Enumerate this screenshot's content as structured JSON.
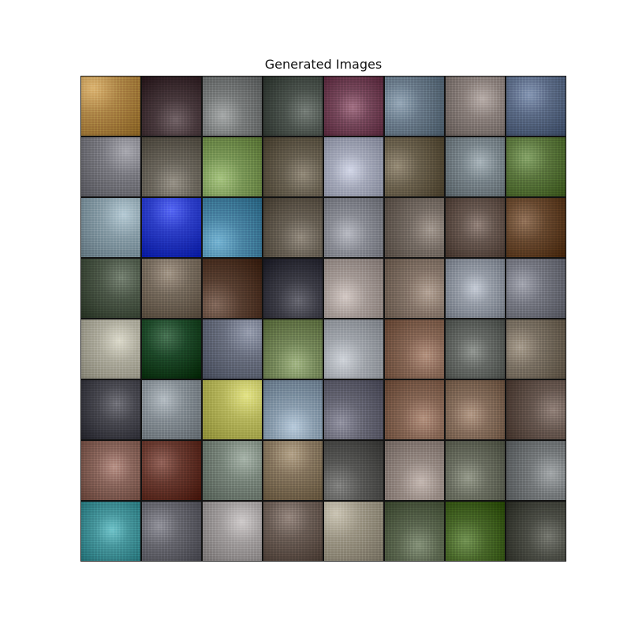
{
  "figure": {
    "title": "Generated Images"
  },
  "grid": {
    "rows": 8,
    "cols": 8,
    "tiles": [
      [
        "#b08a4a",
        "#4a3a3e",
        "#7d8080",
        "#4e5650",
        "#7a4a5e",
        "#6e7f8e",
        "#8e8480",
        "#5f6f8a"
      ],
      [
        "#7f7f86",
        "#6f6a60",
        "#7e9a5a",
        "#6a6252",
        "#a8acbc",
        "#6e6450",
        "#7f8a90",
        "#5e7a40"
      ],
      [
        "#8ca0aa",
        "#2e40c8",
        "#4e8aa8",
        "#6a6256",
        "#8e9098",
        "#7a7068",
        "#6a5a52",
        "#6a4a30"
      ],
      [
        "#4e5a4a",
        "#7a6e60",
        "#5a4032",
        "#3e3e48",
        "#a89e9a",
        "#8a7a6e",
        "#9aa0aa",
        "#7a7c86"
      ],
      [
        "#b0aea0",
        "#1e4a2a",
        "#6e7484",
        "#7a8c5e",
        "#a4a8ae",
        "#8a6a58",
        "#6a6e6a",
        "#7e7466"
      ],
      [
        "#4a4a52",
        "#8a9298",
        "#b8b860",
        "#8ea0b0",
        "#6a6a78",
        "#8a6a58",
        "#8a7260",
        "#6a5a52"
      ],
      [
        "#8e6a60",
        "#6a3a30",
        "#7e8a80",
        "#8a7a62",
        "#5a5a58",
        "#9a8e88",
        "#6e7264",
        "#7a7e80"
      ],
      [
        "#4a9aa0",
        "#6a6a72",
        "#a4a0a0",
        "#6e6058",
        "#a09a8a",
        "#5e6a52",
        "#4a6a2a",
        "#4e5048"
      ]
    ]
  }
}
